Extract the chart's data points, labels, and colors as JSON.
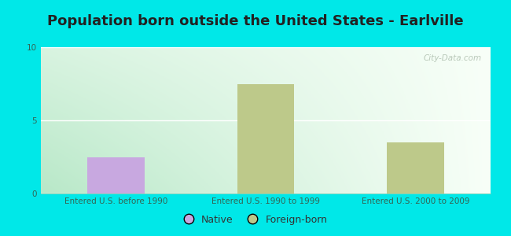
{
  "title": "Population born outside the United States - Earlville",
  "categories": [
    "Entered U.S. before 1990",
    "Entered U.S. 1990 to 1999",
    "Entered U.S. 2000 to 2009"
  ],
  "native_values": [
    2.5,
    0,
    0
  ],
  "foreign_values": [
    0,
    7.5,
    3.5
  ],
  "native_color": "#c8a8e0",
  "foreign_color": "#bdc98a",
  "ylim": [
    0,
    10
  ],
  "yticks": [
    0,
    5,
    10
  ],
  "background_color": "#00e8e8",
  "plot_bg_left": "#b8e8c8",
  "plot_bg_right": "#f8fff8",
  "title_fontsize": 13,
  "tick_fontsize": 7.5,
  "legend_fontsize": 9,
  "bar_width": 0.38,
  "watermark": "City-Data.com"
}
